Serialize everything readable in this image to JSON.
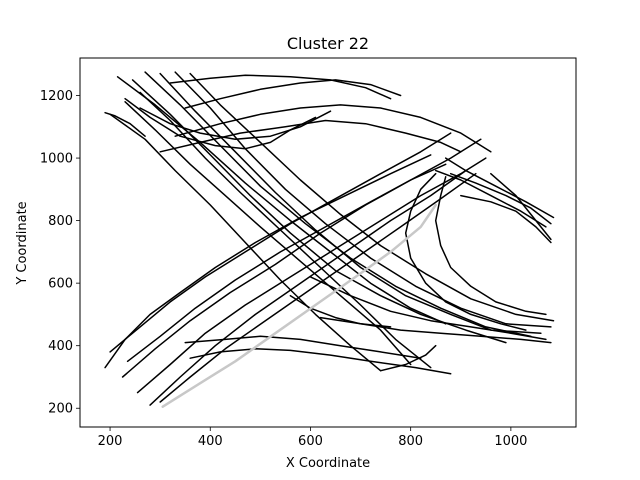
{
  "chart_data": {
    "type": "line",
    "title": "Cluster 22",
    "xlabel": "X Coordinate",
    "ylabel": "Y Coordinate",
    "xlim": [
      140,
      1130
    ],
    "ylim": [
      140,
      1320
    ],
    "x_ticks": [
      200,
      400,
      600,
      800,
      1000
    ],
    "y_ticks": [
      200,
      400,
      600,
      800,
      1000,
      1200
    ],
    "grid": false,
    "legend": "none",
    "series": [
      {
        "color": "#000000",
        "x": [
          215,
          290,
          380,
          470,
          560,
          640,
          720,
          800,
          870
        ],
        "y": [
          1260,
          1170,
          1050,
          920,
          800,
          700,
          600,
          520,
          470
        ]
      },
      {
        "color": "#000000",
        "x": [
          245,
          320,
          400,
          480,
          560,
          650,
          740,
          820,
          910,
          990
        ],
        "y": [
          1250,
          1140,
          1010,
          880,
          760,
          640,
          560,
          500,
          450,
          410
        ]
      },
      {
        "color": "#000000",
        "x": [
          270,
          340,
          420,
          500,
          590,
          680,
          770,
          860,
          950,
          1040
        ],
        "y": [
          1275,
          1170,
          1040,
          910,
          790,
          680,
          590,
          520,
          460,
          430
        ]
      },
      {
        "color": "#000000",
        "x": [
          300,
          370,
          450,
          530,
          610,
          700,
          790,
          880,
          960,
          1060
        ],
        "y": [
          1270,
          1150,
          1020,
          890,
          770,
          650,
          560,
          500,
          450,
          440
        ]
      },
      {
        "color": "#000000",
        "x": [
          330,
          400,
          470,
          550,
          630,
          720,
          810,
          900,
          990,
          1080
        ],
        "y": [
          1275,
          1160,
          1030,
          900,
          790,
          680,
          590,
          520,
          470,
          460
        ]
      },
      {
        "color": "#000000",
        "x": [
          360,
          420,
          500,
          580,
          660,
          740,
          830,
          920,
          1010,
          1085
        ],
        "y": [
          1270,
          1170,
          1050,
          930,
          820,
          720,
          630,
          550,
          500,
          480
        ]
      },
      {
        "color": "#000000",
        "x": [
          230,
          290,
          360,
          430,
          500,
          580,
          660,
          740,
          800
        ],
        "y": [
          1180,
          1090,
          980,
          880,
          780,
          670,
          560,
          450,
          340
        ]
      },
      {
        "color": "#000000",
        "x": [
          260,
          320,
          390,
          460,
          540,
          620,
          700,
          770,
          840
        ],
        "y": [
          1210,
          1120,
          1000,
          890,
          770,
          650,
          530,
          420,
          330
        ]
      },
      {
        "color": "#000000",
        "x": [
          200,
          270,
          330,
          400,
          470,
          540,
          610,
          680,
          740
        ],
        "y": [
          1140,
          1060,
          960,
          850,
          730,
          610,
          500,
          400,
          320
        ]
      },
      {
        "color": "#000000",
        "x": [
          190,
          230,
          280,
          340,
          410,
          490,
          580,
          670,
          760,
          840
        ],
        "y": [
          330,
          420,
          500,
          570,
          650,
          730,
          810,
          880,
          950,
          1010
        ]
      },
      {
        "color": "#000000",
        "x": [
          200,
          260,
          320,
          390,
          470,
          560,
          650,
          740,
          820,
          880
        ],
        "y": [
          380,
          460,
          540,
          620,
          700,
          790,
          870,
          950,
          1020,
          1080
        ]
      },
      {
        "color": "#000000",
        "x": [
          225,
          290,
          360,
          440,
          530,
          620,
          710,
          800,
          880,
          940
        ],
        "y": [
          300,
          390,
          480,
          570,
          660,
          760,
          850,
          930,
          1000,
          1060
        ]
      },
      {
        "color": "#000000",
        "x": [
          255,
          320,
          390,
          470,
          560,
          650,
          740,
          820,
          900,
          950
        ],
        "y": [
          250,
          340,
          440,
          530,
          620,
          710,
          800,
          880,
          950,
          1000
        ]
      },
      {
        "color": "#000000",
        "x": [
          280,
          340,
          410,
          490,
          580,
          670,
          760,
          840,
          910
        ],
        "y": [
          210,
          300,
          400,
          500,
          600,
          700,
          800,
          880,
          960
        ]
      },
      {
        "color": "#000000",
        "x": [
          300,
          360,
          430,
          510,
          600,
          690,
          780,
          860,
          930
        ],
        "y": [
          220,
          300,
          390,
          480,
          580,
          680,
          780,
          870,
          950
        ]
      },
      {
        "color": "#000000",
        "x": [
          235,
          300,
          370,
          450,
          540,
          630,
          720,
          800,
          870
        ],
        "y": [
          350,
          430,
          520,
          610,
          700,
          780,
          860,
          930,
          980
        ]
      },
      {
        "color": "#000000",
        "x": [
          330,
          420,
          500,
          580,
          660,
          740,
          820,
          900,
          960
        ],
        "y": [
          1070,
          1110,
          1140,
          1160,
          1170,
          1160,
          1130,
          1080,
          1020
        ]
      },
      {
        "color": "#000000",
        "x": [
          300,
          380,
          460,
          550,
          630,
          710,
          790,
          860,
          900
        ],
        "y": [
          1020,
          1050,
          1080,
          1100,
          1120,
          1110,
          1080,
          1050,
          1020
        ]
      },
      {
        "color": "#000000",
        "x": [
          350,
          420,
          500,
          580,
          650,
          720,
          780
        ],
        "y": [
          1160,
          1190,
          1220,
          1240,
          1250,
          1235,
          1200
        ]
      },
      {
        "color": "#000000",
        "x": [
          320,
          400,
          470,
          560,
          640,
          710,
          760
        ],
        "y": [
          1240,
          1255,
          1265,
          1260,
          1250,
          1225,
          1190
        ]
      },
      {
        "color": "#000000",
        "x": [
          360,
          420,
          490,
          560,
          640,
          720,
          810,
          880
        ],
        "y": [
          360,
          380,
          390,
          385,
          370,
          350,
          330,
          310
        ]
      },
      {
        "color": "#000000",
        "x": [
          350,
          430,
          500,
          580,
          660,
          740,
          820
        ],
        "y": [
          410,
          420,
          430,
          420,
          400,
          380,
          360
        ]
      },
      {
        "color": "#000000",
        "x": [
          620,
          700,
          780,
          860,
          940,
          1020,
          1080
        ],
        "y": [
          490,
          470,
          450,
          440,
          430,
          420,
          410
        ]
      },
      {
        "color": "#000000",
        "x": [
          600,
          680,
          760,
          840,
          920,
          1000,
          1070
        ],
        "y": [
          620,
          560,
          510,
          480,
          460,
          440,
          420
        ]
      },
      {
        "color": "#000000",
        "x": [
          850,
          900,
          960,
          1020,
          1070
        ],
        "y": [
          960,
          930,
          880,
          830,
          780
        ]
      },
      {
        "color": "#000000",
        "x": [
          880,
          930,
          990,
          1040,
          1080
        ],
        "y": [
          950,
          920,
          880,
          840,
          790
        ]
      },
      {
        "color": "#000000",
        "x": [
          870,
          910,
          970,
          1030,
          1085
        ],
        "y": [
          1000,
          960,
          910,
          860,
          810
        ]
      },
      {
        "color": "#000000",
        "x": [
          900,
          960,
          1010,
          1050,
          1080
        ],
        "y": [
          880,
          860,
          830,
          780,
          730
        ]
      },
      {
        "color": "#000000",
        "x": [
          850,
          820,
          800,
          790,
          800,
          830,
          870,
          920,
          980,
          1030
        ],
        "y": [
          950,
          900,
          830,
          760,
          680,
          600,
          540,
          500,
          470,
          450
        ]
      },
      {
        "color": "#000000",
        "x": [
          870,
          860,
          850,
          860,
          880,
          920,
          970,
          1030,
          1070
        ],
        "y": [
          940,
          880,
          800,
          720,
          650,
          590,
          540,
          510,
          500
        ]
      },
      {
        "color": "#000000",
        "x": [
          960,
          1010,
          1050,
          1080
        ],
        "y": [
          950,
          880,
          800,
          740
        ]
      },
      {
        "color": "#000000",
        "x": [
          230,
          280,
          340,
          410,
          470,
          520,
          560,
          610
        ],
        "y": [
          1190,
          1130,
          1070,
          1040,
          1030,
          1050,
          1090,
          1130
        ]
      },
      {
        "color": "#000000",
        "x": [
          260,
          320,
          380,
          450,
          520,
          580,
          640
        ],
        "y": [
          1160,
          1110,
          1080,
          1060,
          1070,
          1100,
          1150
        ]
      },
      {
        "color": "#000000",
        "x": [
          190,
          210,
          240,
          270
        ],
        "y": [
          1145,
          1135,
          1110,
          1070
        ]
      },
      {
        "color": "#000000",
        "x": [
          560,
          600,
          650,
          700,
          760
        ],
        "y": [
          560,
          520,
          490,
          470,
          460
        ]
      },
      {
        "color": "#000000",
        "x": [
          740,
          790,
          830,
          850
        ],
        "y": [
          320,
          340,
          370,
          400
        ]
      }
    ],
    "highlight_series": [
      {
        "color": "#c8c8c8",
        "x": [
          305,
          370,
          450,
          530,
          610,
          690,
          760,
          820,
          850
        ],
        "y": [
          205,
          270,
          350,
          440,
          530,
          620,
          700,
          780,
          850
        ]
      }
    ]
  }
}
